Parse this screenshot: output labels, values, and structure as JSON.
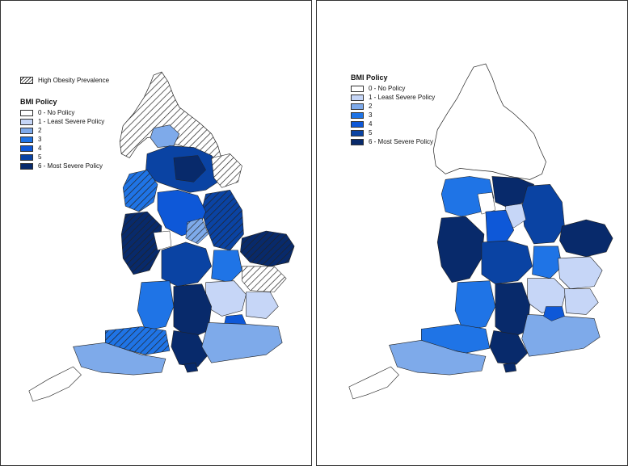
{
  "colors": {
    "policy_0": "#ffffff",
    "policy_1": "#c6d6f7",
    "policy_2": "#7eaaea",
    "policy_3": "#1f74e6",
    "policy_4": "#0e58d8",
    "policy_5": "#0a43a3",
    "policy_6": "#082a6b",
    "outline": "#222222"
  },
  "left_panel": {
    "hatch_legend_label": "High Obesity Prevalence",
    "legend_title": "BMI Policy",
    "legend_items": [
      {
        "label": "0 - No Policy",
        "level": 0
      },
      {
        "label": "1 - Least Severe Policy",
        "level": 1
      },
      {
        "label": "2",
        "level": 2
      },
      {
        "label": "3",
        "level": 3
      },
      {
        "label": "4",
        "level": 4
      },
      {
        "label": "5",
        "level": 5
      },
      {
        "label": "6 - Most Severe Policy",
        "level": 6
      }
    ]
  },
  "right_panel": {
    "legend_title": "BMI Policy",
    "legend_items": [
      {
        "label": "0 - No Policy",
        "level": 0
      },
      {
        "label": "1 - Least Severe Policy",
        "level": 1
      },
      {
        "label": "2",
        "level": 2
      },
      {
        "label": "3",
        "level": 3
      },
      {
        "label": "4",
        "level": 4
      },
      {
        "label": "5",
        "level": 5
      },
      {
        "label": "6 - Most Severe Policy",
        "level": 6
      }
    ]
  }
}
